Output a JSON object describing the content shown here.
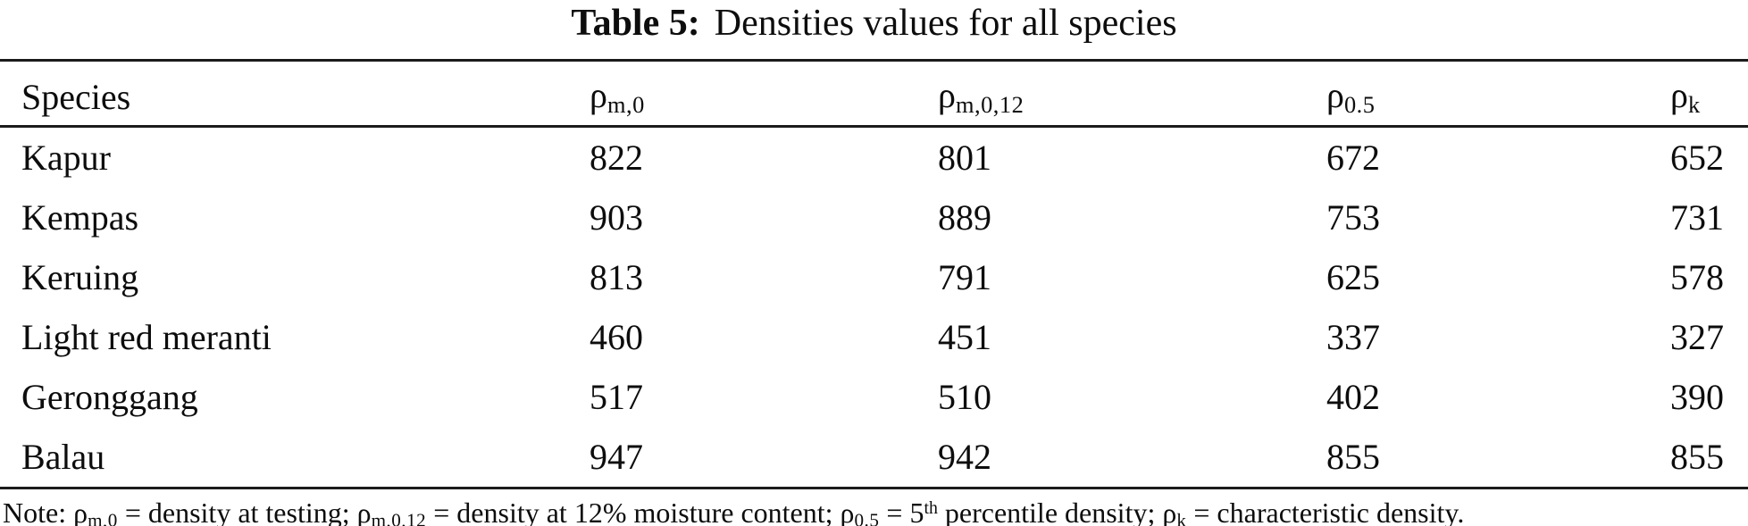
{
  "caption": {
    "label": "Table 5:",
    "text": "Densities values for all species"
  },
  "table": {
    "columns": [
      {
        "label": "Species"
      },
      {
        "symbol": "ρ",
        "subscript": "m,0"
      },
      {
        "symbol": "ρ",
        "subscript": "m,0,12"
      },
      {
        "symbol": "ρ",
        "subscript": "0.5"
      },
      {
        "symbol": "ρ",
        "subscript": "k"
      }
    ],
    "rows": [
      {
        "species": "Kapur",
        "values": [
          "822",
          "801",
          "672",
          "652"
        ]
      },
      {
        "species": "Kempas",
        "values": [
          "903",
          "889",
          "753",
          "731"
        ]
      },
      {
        "species": "Keruing",
        "values": [
          "813",
          "791",
          "625",
          "578"
        ]
      },
      {
        "species": "Light red meranti",
        "values": [
          "460",
          "451",
          "337",
          "327"
        ]
      },
      {
        "species": "Geronggang",
        "values": [
          "517",
          "510",
          "402",
          "390"
        ]
      },
      {
        "species": "Balau",
        "values": [
          "947",
          "942",
          "855",
          "855"
        ]
      }
    ]
  },
  "note": {
    "segments": {
      "s0": "Note: ",
      "s1": "ρ",
      "s2": "m,0",
      "s3": " = density at testing; ",
      "s4": "ρ",
      "s5": "m,0,12",
      "s6": " = density at 12% moisture content; ",
      "s7": "ρ",
      "s8": "0.5",
      "s9": " = 5",
      "s10": "th",
      "s11": " percentile density; ",
      "s12": "ρ",
      "s13": "k",
      "s14": " = characteristic density."
    }
  },
  "chart_data": {
    "type": "table",
    "title": "Table 5: Densities values for all species",
    "columns": [
      "Species",
      "ρ_m,0",
      "ρ_m,0,12",
      "ρ_0.5",
      "ρ_k"
    ],
    "rows": [
      [
        "Kapur",
        822,
        801,
        672,
        652
      ],
      [
        "Kempas",
        903,
        889,
        753,
        731
      ],
      [
        "Keruing",
        813,
        791,
        625,
        578
      ],
      [
        "Light red meranti",
        460,
        451,
        337,
        327
      ],
      [
        "Geronggang",
        517,
        510,
        402,
        390
      ],
      [
        "Balau",
        947,
        942,
        855,
        855
      ]
    ],
    "note": "Note: ρ_m,0 = density at testing; ρ_m,0,12 = density at 12% moisture content; ρ_0.5 = 5^th percentile density; ρ_k = characteristic density."
  }
}
